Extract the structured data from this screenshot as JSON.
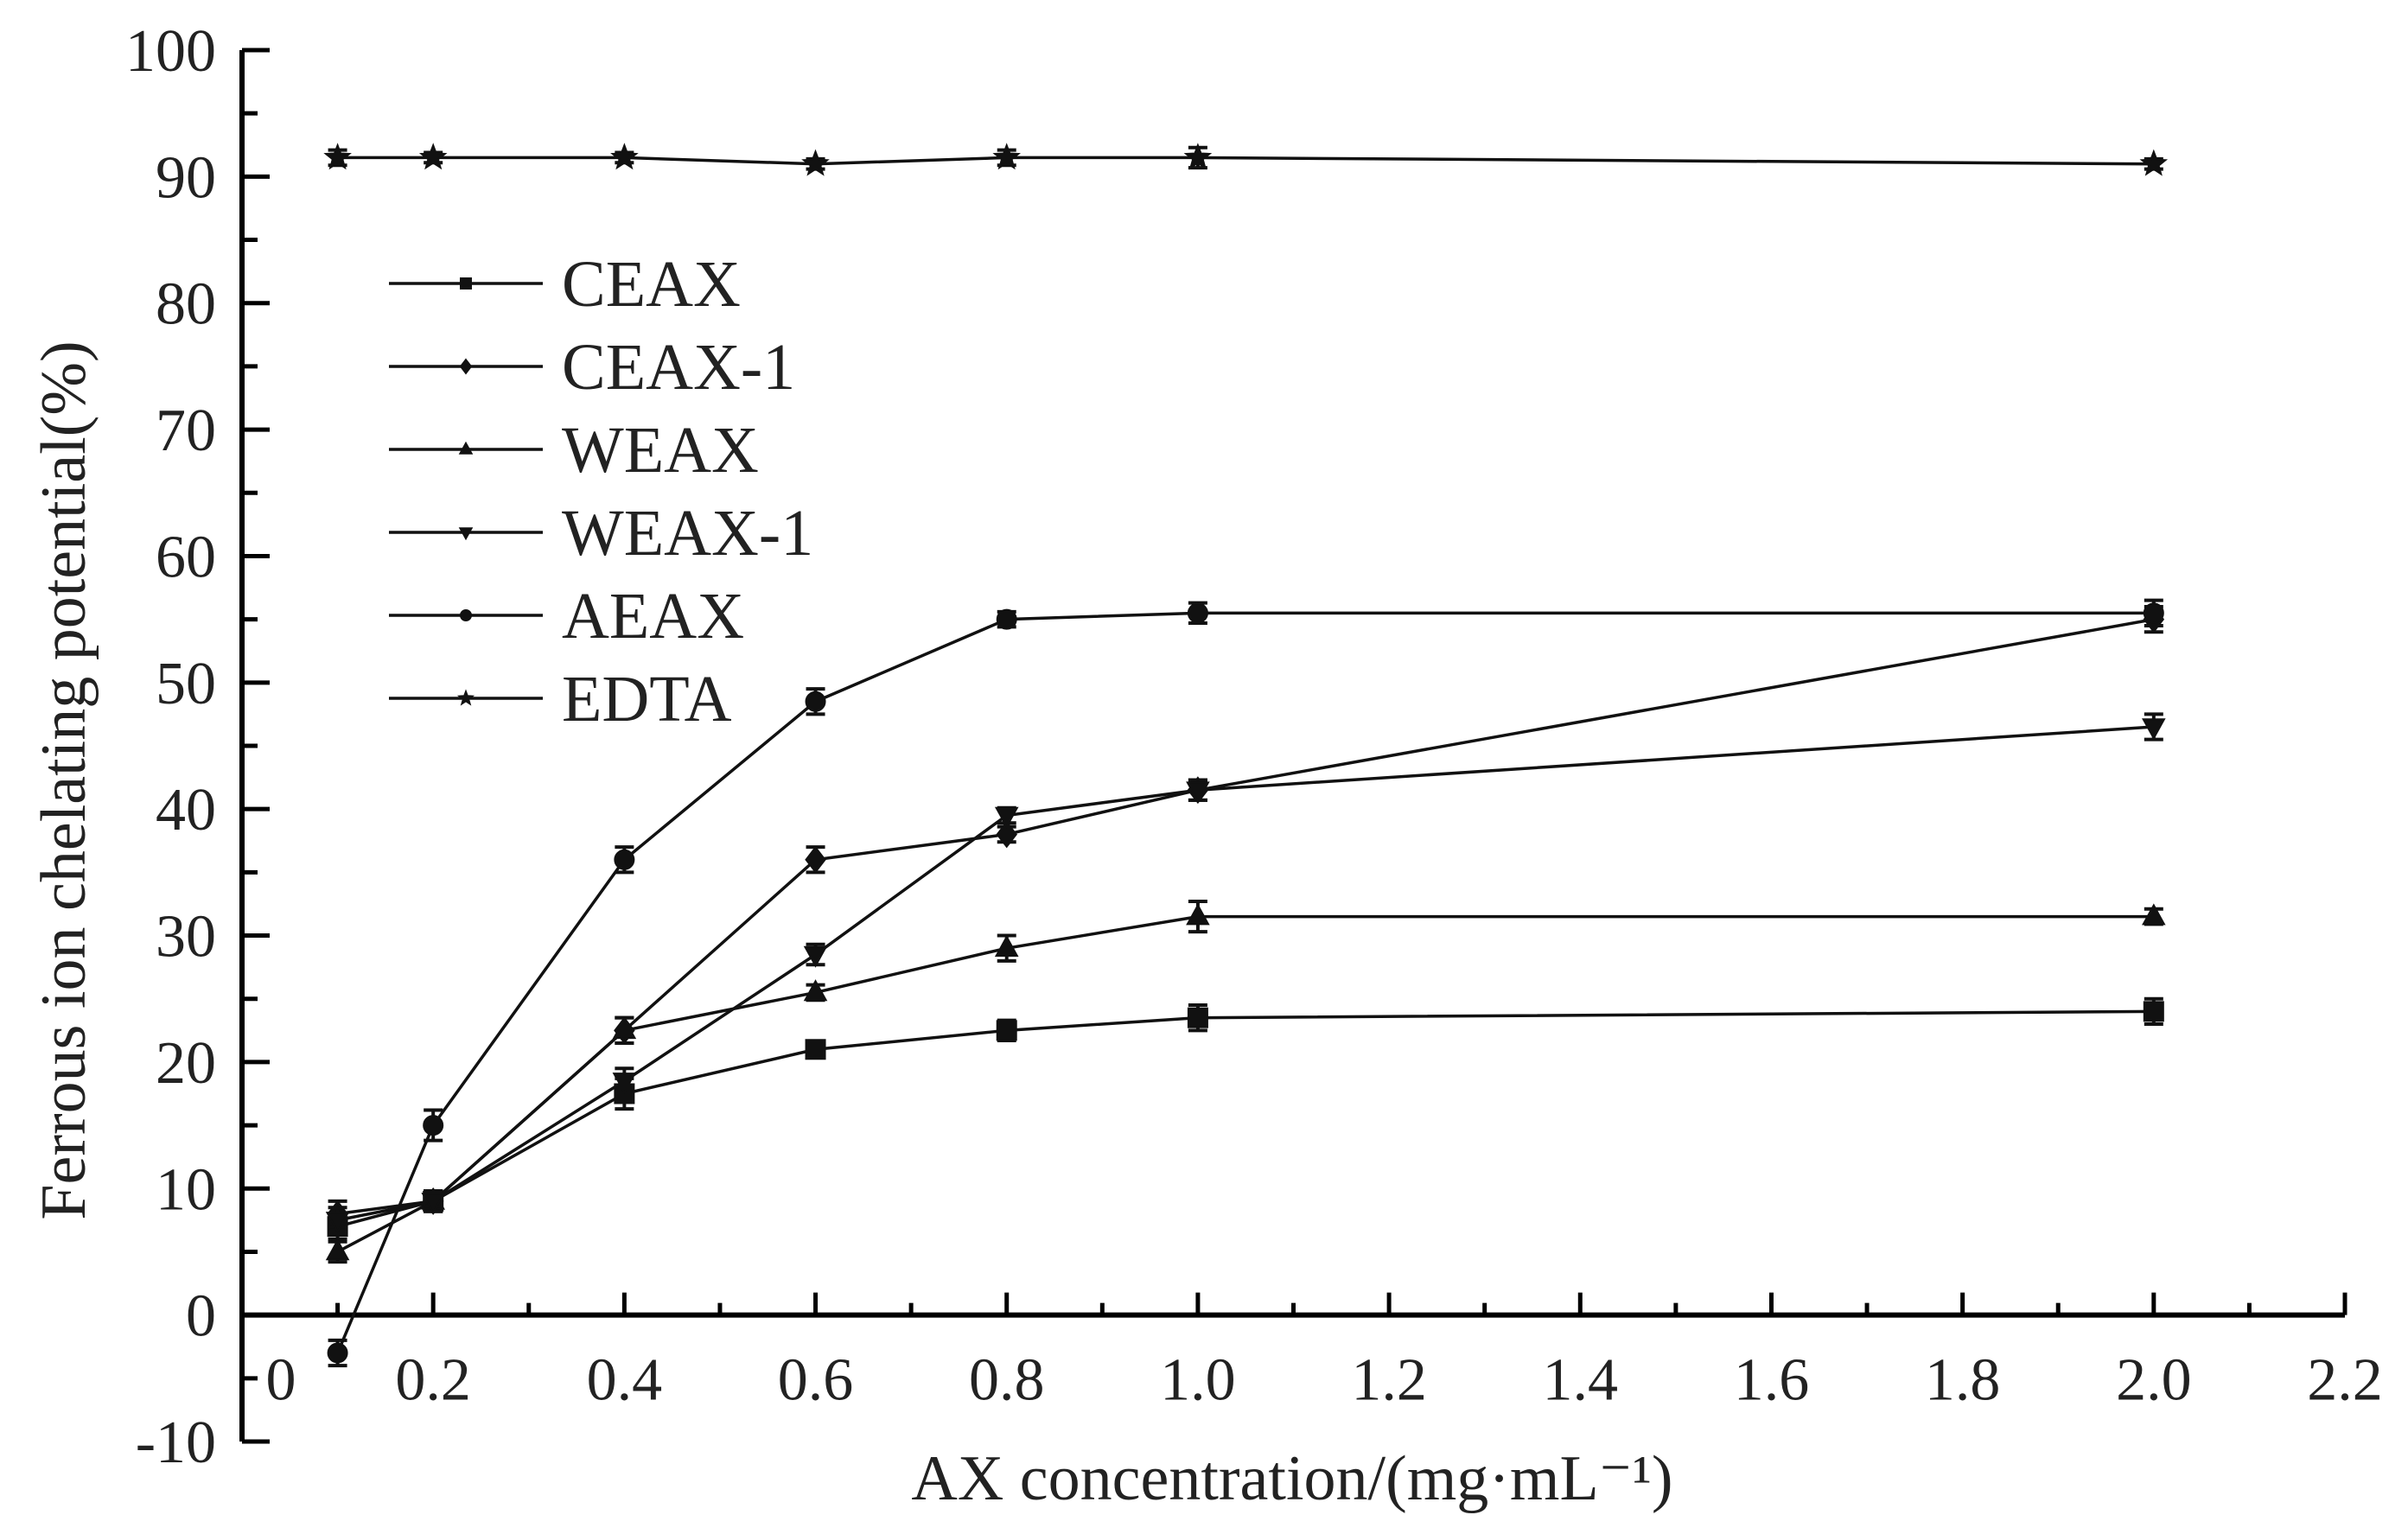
{
  "chart_data": {
    "type": "line",
    "title": "",
    "xlabel": "AX concentration/(mg·mL⁻¹)",
    "ylabel": "Ferrous ion chelating potential(%)",
    "xlim": [
      0,
      2.2
    ],
    "ylim": [
      -10,
      100
    ],
    "x_axis_crosses_y_at": 0,
    "x_ticks": [
      0,
      0.2,
      0.4,
      0.6,
      0.8,
      1.0,
      1.2,
      1.4,
      1.6,
      1.8,
      2.0,
      2.2
    ],
    "x_tick_labels": [
      "0",
      "0.2",
      "0.4",
      "0.6",
      "0.8",
      "1.0",
      "1.2",
      "1.4",
      "1.6",
      "1.8",
      "2.0",
      "2.2"
    ],
    "y_ticks": [
      -10,
      0,
      10,
      20,
      30,
      40,
      50,
      60,
      70,
      80,
      90,
      100
    ],
    "y_tick_labels": [
      "-10",
      "0",
      "10",
      "20",
      "30",
      "40",
      "50",
      "60",
      "70",
      "80",
      "90",
      "100"
    ],
    "grid": false,
    "legend_position": "upper-left",
    "x": [
      0.1,
      0.2,
      0.4,
      0.6,
      0.8,
      1.0,
      2.0
    ],
    "series": [
      {
        "name": "CEAX",
        "marker": "square",
        "values": [
          7,
          9,
          17.5,
          21,
          22.5,
          23.5,
          24
        ],
        "errors": [
          1,
          0.8,
          1.2,
          0.6,
          0.8,
          1.0,
          1.0
        ]
      },
      {
        "name": "CEAX-1",
        "marker": "diamond",
        "values": [
          8,
          9,
          22.5,
          36,
          38,
          41.5,
          55
        ],
        "errors": [
          1,
          0.8,
          1.0,
          1.0,
          0.6,
          0.8,
          1.0
        ]
      },
      {
        "name": "WEAX",
        "marker": "triangle-up",
        "values": [
          5,
          9,
          22.5,
          25.5,
          29,
          31.5,
          31.5
        ],
        "errors": [
          0.8,
          0.8,
          1.0,
          0.6,
          1.0,
          1.2,
          0.6
        ]
      },
      {
        "name": "WEAX-1",
        "marker": "triangle-down",
        "values": [
          7.5,
          9,
          18.5,
          28.5,
          39.5,
          41.5,
          46.5
        ],
        "errors": [
          1,
          0.8,
          1.0,
          0.8,
          0.6,
          0.8,
          1.0
        ]
      },
      {
        "name": "AEAX",
        "marker": "circle",
        "values": [
          -3,
          15,
          36,
          48.5,
          55,
          55.5,
          55.5
        ],
        "errors": [
          1,
          1.2,
          1.0,
          1.0,
          0.6,
          0.8,
          1.0
        ]
      },
      {
        "name": "EDTA",
        "marker": "star",
        "values": [
          91.5,
          91.5,
          91.5,
          91,
          91.5,
          91.5,
          91
        ],
        "errors": [
          0.6,
          0.4,
          0.4,
          0.4,
          0.6,
          0.8,
          0.4
        ]
      }
    ]
  }
}
